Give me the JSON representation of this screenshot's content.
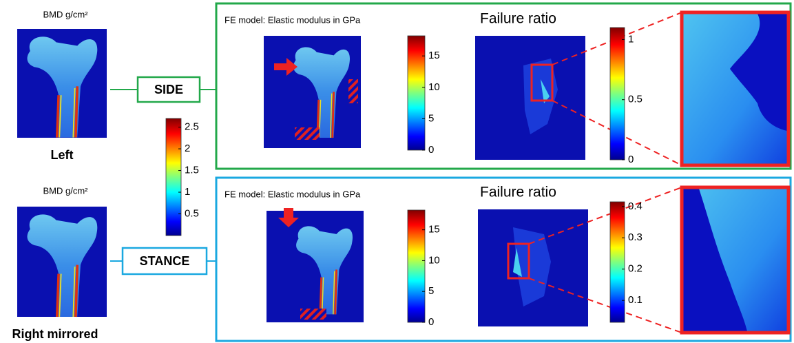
{
  "left_column": {
    "top_label": "BMD g/cm²",
    "top_caption": "Left",
    "bottom_label": "BMD g/cm²",
    "bottom_caption": "Right mirrored"
  },
  "bmd_colorbar": {
    "lim": [
      0,
      2.7
    ],
    "ticks": [
      0.5,
      1,
      1.5,
      2,
      2.5
    ]
  },
  "panels": [
    {
      "condition": "SIDE",
      "fe_title": "FE model: Elastic modulus in GPa",
      "fe_colorbar": {
        "lim": [
          0,
          18.2
        ],
        "ticks": [
          0,
          5,
          10,
          15
        ]
      },
      "failure_title": "Failure ratio",
      "failure_colorbar": {
        "lim": [
          0,
          1.1
        ],
        "ticks": [
          0,
          0.5,
          1
        ]
      }
    },
    {
      "condition": "STANCE",
      "fe_title": "FE model: Elastic modulus in GPa",
      "fe_colorbar": {
        "lim": [
          0,
          18.2
        ],
        "ticks": [
          0,
          5,
          10,
          15
        ]
      },
      "failure_title": "Failure ratio",
      "failure_colorbar": {
        "lim": [
          0.03,
          0.415
        ],
        "ticks": [
          0.1,
          0.2,
          0.3,
          0.4
        ]
      }
    }
  ]
}
